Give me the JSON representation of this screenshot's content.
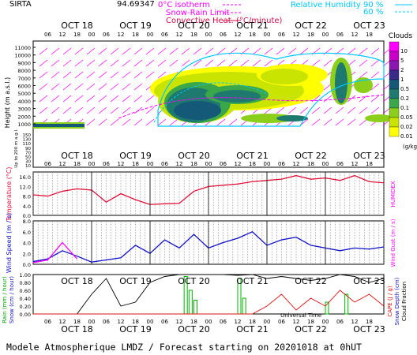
{
  "station": "SIRTA",
  "coords": "94.69347",
  "legend": {
    "isotherm": "0°C isotherm",
    "snow_rain": "Snow-Rain Limit",
    "convective": "Convective Heat. (°C/minute)",
    "rh_label": "Relative Humidity",
    "rh_90": "90 %",
    "rh_60": "60 %"
  },
  "days": [
    "OCT 18",
    "OCT 19",
    "OCT 20",
    "OCT 21",
    "OCT 22",
    "OCT 23"
  ],
  "hours": [
    "06",
    "12",
    "18",
    "00",
    "06",
    "12",
    "18",
    "00",
    "06",
    "12",
    "18",
    "00",
    "06",
    "12",
    "18",
    "00",
    "06",
    "12",
    "18",
    "00",
    "06",
    "12",
    "18"
  ],
  "clouds": {
    "title": "Clouds",
    "unit": "(g/kg)",
    "levels": [
      "0.01",
      "0.02",
      "0.05",
      "0.1",
      "0.2",
      "0.5",
      "1",
      "2",
      "5",
      "10"
    ],
    "colors": [
      "#ffff00",
      "#c8e400",
      "#8ccf1a",
      "#3aa84a",
      "#1e7a6e",
      "#145a78",
      "#3a2a8a",
      "#8a18b0",
      "#c800c8",
      "#ff00ff"
    ]
  },
  "axis_labels": {
    "height": "Height (m a.s.l.)",
    "up200": "Up to 200 m a.g.l.",
    "temperature": "Temperature (°C)",
    "humidex": "HUMIDEX",
    "wind_speed": "Wind Speed (m / s)",
    "wind_gust": "Wind Gust (m / s)",
    "rain": "Rain (mm / hour)",
    "snow": "Snow (cm / hour)",
    "cape": "CAPE (J / g)",
    "snow_depth": "Snow Depth (cm)",
    "cloud_fraction": "Cloud Fraction",
    "universal_time": "Universal Time"
  },
  "footer": "Modele Atmospherique LMDZ / Forecast starting on 20201018 at 0hUT",
  "chart_data": [
    {
      "type": "heatmap",
      "title": "Clouds",
      "ylabel": "Height (m a.s.l.)",
      "yticks_upper": [
        "11000",
        "10000",
        "9000",
        "8000",
        "7000",
        "6000",
        "5000",
        "4000",
        "3000",
        "2000",
        "1000"
      ],
      "yticks_lower": [
        "150",
        "140",
        "130",
        "120",
        "110",
        "100",
        "90",
        "80",
        "70",
        "60",
        "50",
        "40",
        "30",
        "20",
        "10"
      ]
    },
    {
      "type": "line",
      "ylabel": "Temperature (°C)",
      "yticks": [
        "16.0",
        "12.0",
        "8.0",
        "4.0",
        "0.0"
      ],
      "ylim": [
        0,
        18
      ],
      "x_hours": [
        0,
        6,
        12,
        18,
        24,
        30,
        36,
        42,
        48,
        54,
        60,
        66,
        72,
        78,
        84,
        90,
        96,
        102,
        108,
        114,
        120,
        126,
        132,
        138,
        144
      ],
      "series": [
        {
          "values": [
            8.5,
            8.0,
            10.0,
            11.0,
            10.5,
            5.5,
            9.0,
            6.5,
            4.5,
            4.8,
            5.0,
            10.0,
            12.0,
            12.5,
            13.0,
            14.0,
            14.5,
            15.0,
            16.5,
            15.0,
            15.5,
            14.5,
            16.5,
            14.0,
            13.5
          ]
        }
      ]
    },
    {
      "type": "line",
      "ylabel": "Wind Speed (m / s)",
      "yticks": [
        "8.0",
        "6.0",
        "4.0",
        "2.0",
        "0.0"
      ],
      "ylim": [
        0,
        8
      ],
      "x_hours": [
        0,
        6,
        12,
        18,
        24,
        30,
        36,
        42,
        48,
        54,
        60,
        66,
        72,
        78,
        84,
        90,
        96,
        102,
        108,
        114,
        120,
        126,
        132,
        138,
        144
      ],
      "series": [
        {
          "values": [
            0.5,
            1.0,
            2.5,
            1.5,
            0.4,
            0.8,
            1.2,
            3.5,
            2.0,
            4.5,
            3.0,
            5.5,
            3.0,
            4.0,
            4.8,
            6.0,
            3.5,
            4.5,
            5.0,
            3.5,
            3.0,
            2.5,
            3.0,
            2.8,
            3.2
          ]
        },
        {
          "values": [
            0.3,
            0.8,
            4.0,
            1.0
          ]
        }
      ]
    },
    {
      "type": "bar",
      "ylabel": "Rain (mm / hour)",
      "yticks": [
        "1.00",
        "0.80",
        "0.60",
        "0.40",
        "0.20",
        "0.00"
      ],
      "ylim": [
        0,
        1
      ],
      "rain_bars": [
        {
          "x": 62,
          "v": 0.95
        },
        {
          "x": 64,
          "v": 0.6
        },
        {
          "x": 66,
          "v": 0.35
        },
        {
          "x": 84,
          "v": 0.9
        },
        {
          "x": 86,
          "v": 0.4
        },
        {
          "x": 120,
          "v": 0.3
        },
        {
          "x": 128,
          "v": 0.5
        }
      ],
      "cloud_fraction": [
        0.0,
        0.0,
        0.0,
        0.0,
        0.5,
        0.9,
        0.2,
        0.3,
        0.8,
        0.95,
        1.0,
        1.0,
        1.0,
        1.0,
        0.98,
        1.0,
        0.9,
        0.95,
        0.9,
        0.85,
        0.9,
        1.0,
        0.95,
        0.8,
        0.9
      ],
      "cape": [
        0,
        0,
        0,
        0,
        0,
        0,
        0,
        0,
        0,
        0,
        0,
        0,
        0,
        0,
        0,
        0,
        0.2,
        0.5,
        0.1,
        0.4,
        0.2,
        0.6,
        0.3,
        0.5,
        0.2
      ]
    }
  ]
}
